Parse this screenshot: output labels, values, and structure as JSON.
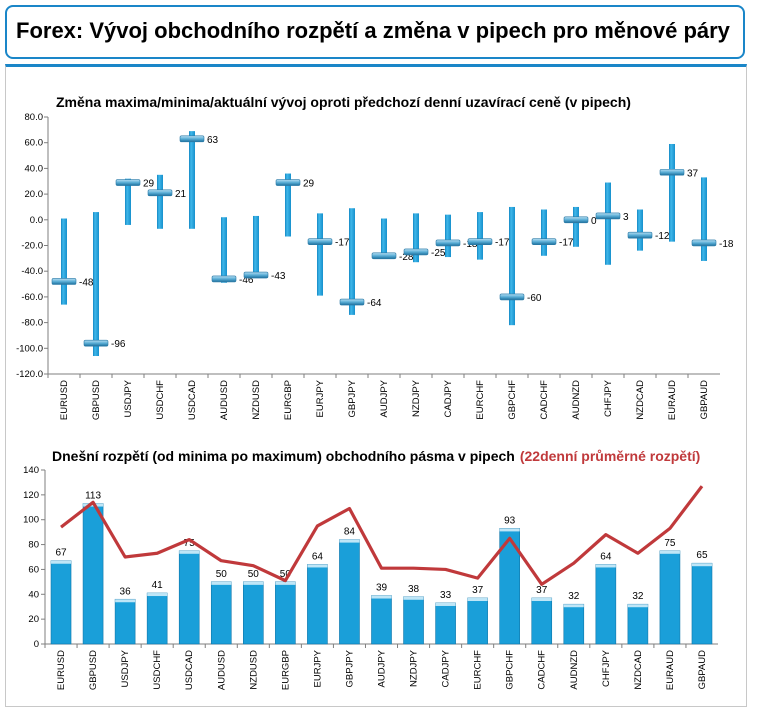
{
  "header": {
    "title": "Forex: Vývoj obchodního rozpětí a změna v pipech pro měnové páry"
  },
  "chart_data": [
    {
      "type": "range",
      "title": "Změna maxima/minima/aktuální vývoj oproti předchozí denní uzavírací ceně (v pipech)",
      "categories": [
        "EURUSD",
        "GBPUSD",
        "USDJPY",
        "USDCHF",
        "USDCAD",
        "AUDUSD",
        "NZDUSD",
        "EURGBP",
        "EURJPY",
        "GBPJPY",
        "AUDJPY",
        "NZDJPY",
        "CADJPY",
        "EURCHF",
        "GBPCHF",
        "CADCHF",
        "AUDNZD",
        "CHFJPY",
        "NZDCAD",
        "EURAUD",
        "GBPAUD"
      ],
      "high": [
        1,
        6,
        32,
        35,
        69,
        2,
        3,
        36,
        5,
        9,
        1,
        5,
        4,
        6,
        10,
        8,
        10,
        29,
        8,
        59,
        33
      ],
      "low": [
        -66,
        -106,
        -4,
        -7,
        -7,
        -49,
        -45,
        -13,
        -59,
        -74,
        -30,
        -33,
        -29,
        -31,
        -82,
        -28,
        -21,
        -35,
        -24,
        -17,
        -32
      ],
      "current": [
        -48,
        -96,
        29,
        21,
        63,
        -46,
        -43,
        29,
        -17,
        -64,
        -28,
        -25,
        -18,
        -17,
        -60,
        -17,
        0,
        3,
        -12,
        37,
        -18
      ],
      "labels": [
        "-48",
        "-96",
        "29",
        "21",
        "63",
        "-46",
        "-43",
        "29",
        "-17",
        "-64",
        "-28",
        "-25",
        "-18",
        "-17",
        "-60",
        "-17",
        "0",
        "3",
        "-12",
        "37",
        "-18"
      ],
      "ylim": [
        -120,
        80
      ],
      "yticks": [
        "80.0",
        "60.0",
        "40.0",
        "20.0",
        "0.0",
        "-20.0",
        "-40.0",
        "-60.0",
        "-80.0",
        "-100.0",
        "-120.0"
      ],
      "grid": false
    },
    {
      "type": "bar",
      "title": "Dnešní rozpětí (od minima po maximum) obchodního pásma v pipech",
      "title_extra": "(22denní průměrné rozpětí)",
      "categories": [
        "EURUSD",
        "GBPUSD",
        "USDJPY",
        "USDCHF",
        "USDCAD",
        "AUDUSD",
        "NZDUSD",
        "EURGBP",
        "EURJPY",
        "GBPJPY",
        "AUDJPY",
        "NZDJPY",
        "CADJPY",
        "EURCHF",
        "GBPCHF",
        "CADCHF",
        "AUDNZD",
        "CHFJPY",
        "NZDCAD",
        "EURAUD",
        "GBPAUD"
      ],
      "values": [
        67,
        113,
        36,
        41,
        75,
        50,
        50,
        50,
        64,
        84,
        39,
        38,
        33,
        37,
        93,
        37,
        32,
        64,
        32,
        75,
        65
      ],
      "labels": [
        "67",
        "113",
        "36",
        "41",
        "75",
        "50",
        "50",
        "50",
        "64",
        "84",
        "39",
        "38",
        "33",
        "37",
        "93",
        "37",
        "32",
        "64",
        "32",
        "75",
        "65"
      ],
      "line_values": [
        94,
        114,
        70,
        73,
        84,
        67,
        63,
        51,
        95,
        109,
        61,
        61,
        60,
        53,
        85,
        48,
        65,
        88,
        73,
        93,
        127
      ],
      "ylim": [
        0,
        140
      ],
      "yticks": [
        "140",
        "120",
        "100",
        "80",
        "60",
        "40",
        "20",
        "0"
      ],
      "bar_color": "#1a9fd9",
      "line_color": "#c0393b",
      "grid": false
    }
  ]
}
